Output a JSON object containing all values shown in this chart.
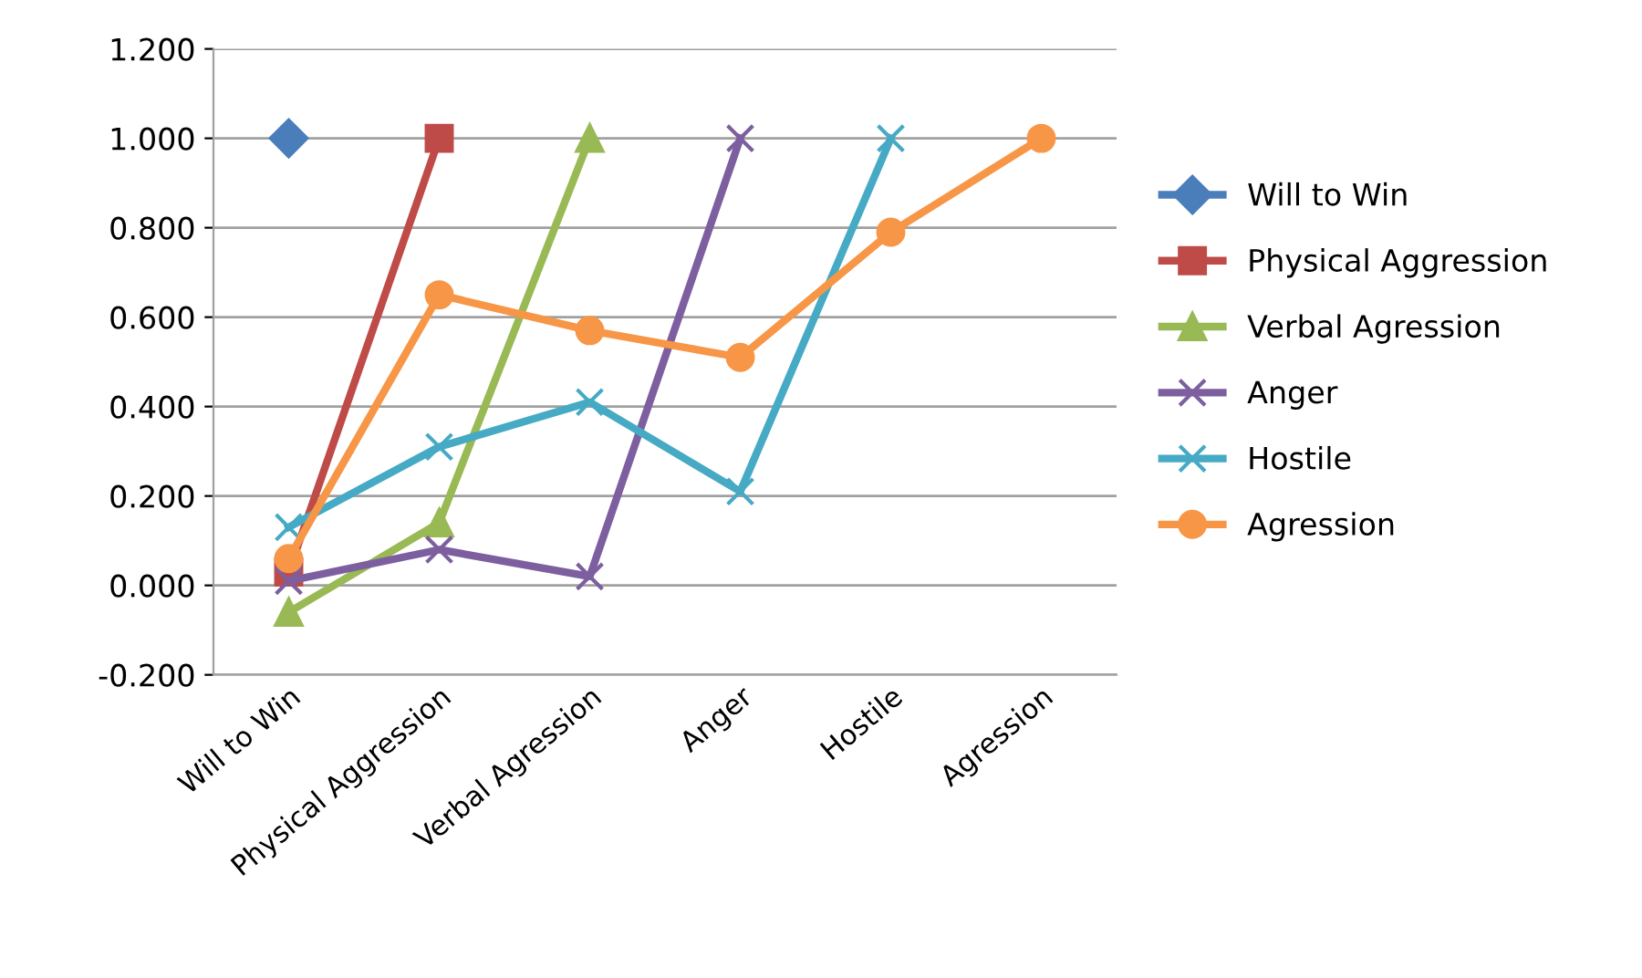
{
  "chart_data": {
    "type": "line",
    "categories": [
      "Will to Win",
      "Physical Aggression",
      "Verbal Agression",
      "Anger",
      "Hostile",
      "Agression"
    ],
    "series": [
      {
        "name": "Will to Win",
        "color": "#4a7ebb",
        "marker": "diamond",
        "values": [
          1.0,
          null,
          null,
          null,
          null,
          null
        ]
      },
      {
        "name": "Physical Aggression",
        "color": "#be4b48",
        "marker": "square",
        "values": [
          0.03,
          1.0,
          null,
          null,
          null,
          null
        ]
      },
      {
        "name": "Verbal Agression",
        "color": "#98b954",
        "marker": "triangle",
        "values": [
          -0.06,
          0.14,
          1.0,
          null,
          null,
          null
        ]
      },
      {
        "name": "Anger",
        "color": "#7d5fa0",
        "marker": "cross",
        "values": [
          0.01,
          0.08,
          0.02,
          1.0,
          null,
          null
        ]
      },
      {
        "name": "Hostile",
        "color": "#46aac5",
        "marker": "cross",
        "values": [
          0.13,
          0.31,
          0.41,
          0.21,
          1.0,
          null
        ]
      },
      {
        "name": "Agression",
        "color": "#f79646",
        "marker": "circle",
        "values": [
          0.06,
          0.65,
          0.57,
          0.51,
          0.79,
          1.0
        ]
      }
    ],
    "ylim": [
      -0.2,
      1.2
    ],
    "yticks": [
      {
        "value": -0.2,
        "label": "-0.200"
      },
      {
        "value": 0,
        "label": "0.000"
      },
      {
        "value": 0.2,
        "label": "0.200"
      },
      {
        "value": 0.4,
        "label": "0.400"
      },
      {
        "value": 0.6,
        "label": "0.600"
      },
      {
        "value": 0.8,
        "label": "0.800"
      },
      {
        "value": 1.0,
        "label": "1.000"
      },
      {
        "value": 1.2,
        "label": "1.200"
      }
    ],
    "grid": "y",
    "legend": "right"
  }
}
